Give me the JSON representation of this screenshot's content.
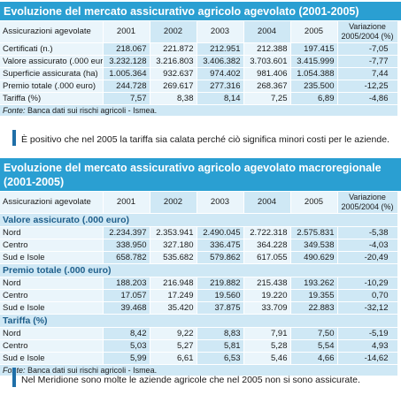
{
  "table1": {
    "title": "Evoluzione del mercato assicurativo agricolo agevolato (2001-2005)",
    "header": [
      "Assicurazioni agevolate",
      "2001",
      "2002",
      "2003",
      "2004",
      "2005",
      "Variazione 2005/2004 (%)"
    ],
    "rows": [
      {
        "label": "Certificati (n.)",
        "values": [
          "218.067",
          "221.872",
          "212.951",
          "212.388",
          "197.415",
          "-7,05"
        ]
      },
      {
        "label": "Valore assicurato (.000 euro)",
        "values": [
          "3.232.128",
          "3.216.803",
          "3.406.382",
          "3.703.601",
          "3.415.999",
          "-7,77"
        ]
      },
      {
        "label": "Superficie assicurata (ha)",
        "values": [
          "1.005.364",
          "932.637",
          "974.402",
          "981.406",
          "1.054.388",
          "7,44"
        ]
      },
      {
        "label": "Premio totale (.000 euro)",
        "values": [
          "244.728",
          "269.617",
          "277.316",
          "268.367",
          "235.500",
          "-12,25"
        ]
      },
      {
        "label": "Tariffa (%)",
        "values": [
          "7,57",
          "8,38",
          "8,14",
          "7,25",
          "6,89",
          "-4,86"
        ]
      }
    ],
    "source_prefix": "Fonte:",
    "source_text": " Banca dati sui rischi agricoli - Ismea."
  },
  "note1": "È positivo che nel 2005 la tariffa sia calata perché ciò significa minori costi per le aziende.",
  "table2": {
    "title": "Evoluzione del mercato assicurativo agricolo agevolato macroregionale (2001-2005)",
    "header": [
      "Assicurazioni agevolate",
      "2001",
      "2002",
      "2003",
      "2004",
      "2005",
      "Variazione 2005/2004 (%)"
    ],
    "sections": [
      {
        "name": "Valore assicurato (.000 euro)",
        "rows": [
          {
            "label": "Nord",
            "values": [
              "2.234.397",
              "2.353.941",
              "2.490.045",
              "2.722.318",
              "2.575.831",
              "-5,38"
            ]
          },
          {
            "label": "Centro",
            "values": [
              "338.950",
              "327.180",
              "336.475",
              "364.228",
              "349.538",
              "-4,03"
            ]
          },
          {
            "label": "Sud e Isole",
            "values": [
              "658.782",
              "535.682",
              "579.862",
              "617.055",
              "490.629",
              "-20,49"
            ]
          }
        ]
      },
      {
        "name": "Premio totale (.000 euro)",
        "rows": [
          {
            "label": "Nord",
            "values": [
              "188.203",
              "216.948",
              "219.882",
              "215.438",
              "193.262",
              "-10,29"
            ]
          },
          {
            "label": "Centro",
            "values": [
              "17.057",
              "17.249",
              "19.560",
              "19.220",
              "19.355",
              "0,70"
            ]
          },
          {
            "label": "Sud e Isole",
            "values": [
              "39.468",
              "35.420",
              "37.875",
              "33.709",
              "22.883",
              "-32,12"
            ]
          }
        ]
      },
      {
        "name": "Tariffa (%)",
        "rows": [
          {
            "label": "Nord",
            "values": [
              "8,42",
              "9,22",
              "8,83",
              "7,91",
              "7,50",
              "-5,19"
            ]
          },
          {
            "label": "Centro",
            "values": [
              "5,03",
              "5,27",
              "5,81",
              "5,28",
              "5,54",
              "4,93"
            ]
          },
          {
            "label": "Sud e Isole",
            "values": [
              "5,99",
              "6,61",
              "6,53",
              "5,46",
              "4,66",
              "-14,62"
            ]
          }
        ]
      }
    ],
    "source_prefix": "Fonte:",
    "source_text": " Banca dati sui rischi agricoli - Ismea."
  },
  "note2": "Nel Meridione sono molte le aziende agricole che nel 2005 non si sono assicurate."
}
